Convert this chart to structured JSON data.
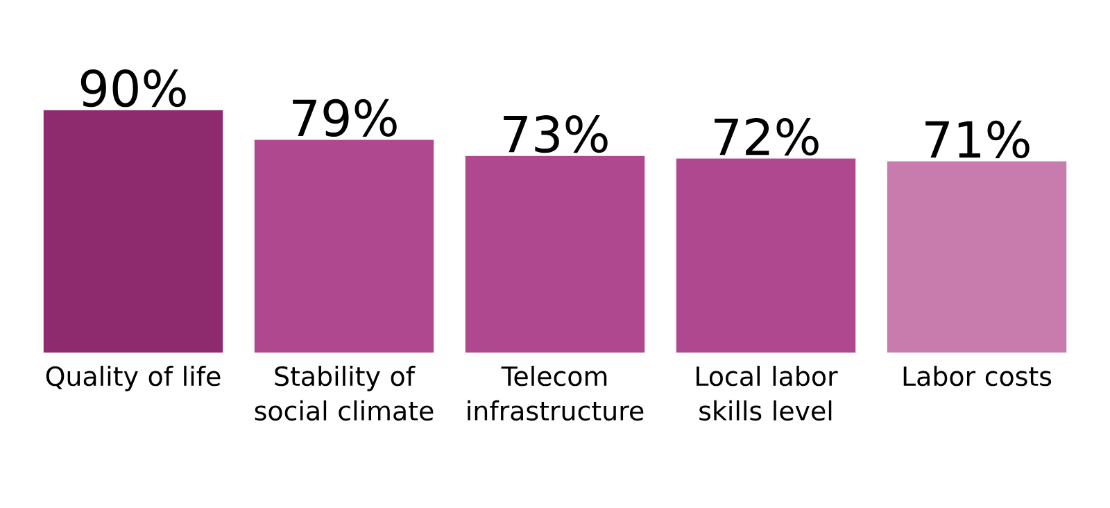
{
  "chart_data": {
    "type": "bar",
    "categories": [
      "Quality of life",
      "Stability of social climate",
      "Telecom infrastructure",
      "Local labor skills level",
      "Labor costs"
    ],
    "values": [
      90,
      79,
      73,
      72,
      71
    ],
    "value_labels": [
      "90%",
      "79%",
      "73%",
      "72%",
      "71%"
    ],
    "colors": [
      "#8e2a6e",
      "#b0488f",
      "#b0488f",
      "#b0488f",
      "#c87cad"
    ]
  }
}
